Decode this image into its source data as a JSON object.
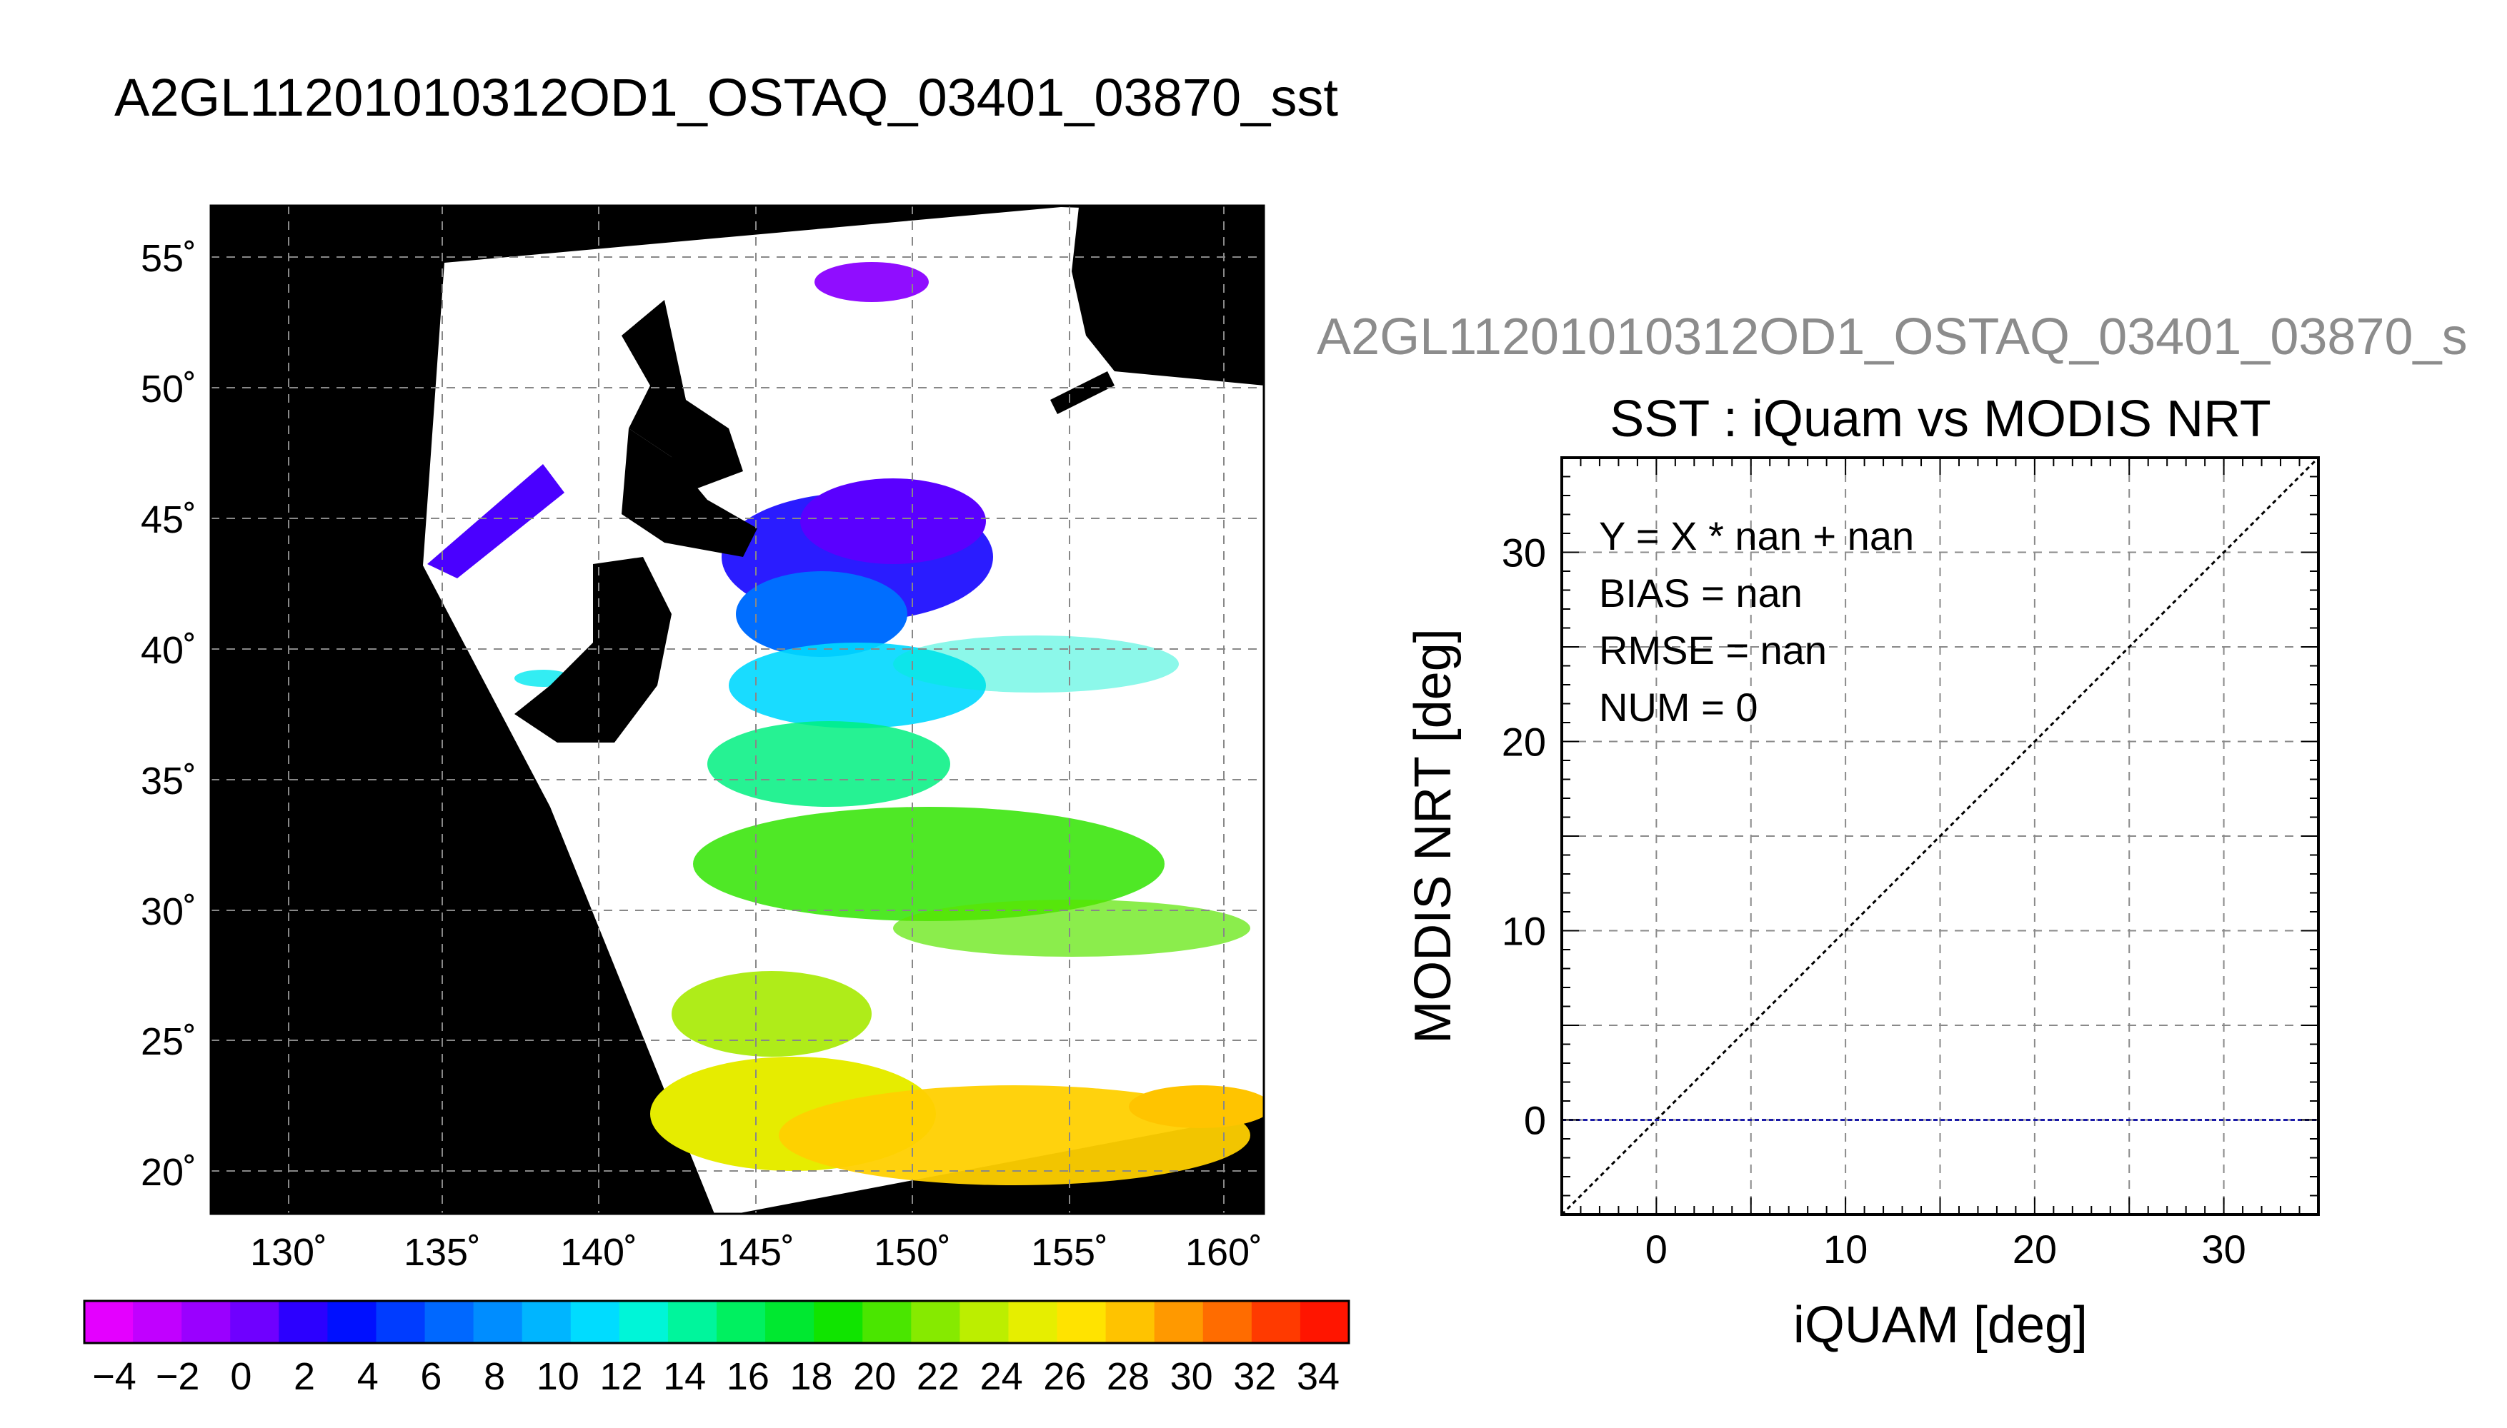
{
  "figure": {
    "title": "A2GL11201010312OD1_OSTAQ_03401_03870_sst"
  },
  "map": {
    "lat_ticks": [
      "55˚",
      "50˚",
      "45˚",
      "40˚",
      "35˚",
      "30˚",
      "25˚",
      "20˚"
    ],
    "lon_ticks": [
      "130˚",
      "135˚",
      "140˚",
      "145˚",
      "150˚",
      "155˚",
      "160˚"
    ],
    "colorbar": {
      "labels": [
        "−4",
        "−2",
        "0",
        "2",
        "4",
        "6",
        "8",
        "10",
        "12",
        "14",
        "16",
        "18",
        "20",
        "22",
        "24",
        "26",
        "28",
        "30",
        "32",
        "34"
      ],
      "colors": [
        "#e400ff",
        "#c100ff",
        "#9a00ff",
        "#6f00ff",
        "#2c00ff",
        "#0010ff",
        "#003cff",
        "#0068ff",
        "#008dff",
        "#00b5ff",
        "#00dcff",
        "#00f5d8",
        "#00f59c",
        "#00f060",
        "#00e830",
        "#10e400",
        "#4ae600",
        "#86ea00",
        "#bcee00",
        "#e6ee00",
        "#ffe300",
        "#ffc300",
        "#ff9900",
        "#ff6c00",
        "#ff3a00",
        "#ff1500"
      ]
    }
  },
  "chart_data": {
    "type": "scatter",
    "title_top": "A2GL11201010312OD1_OSTAQ_03401_03870_s",
    "title": "SST : iQuam vs MODIS NRT",
    "xlabel": "iQUAM [deg]",
    "ylabel": "MODIS NRT [deg]",
    "xlim": [
      -5,
      35
    ],
    "ylim": [
      -5,
      35
    ],
    "xticks": [
      0,
      10,
      20,
      30
    ],
    "yticks": [
      0,
      10,
      20,
      30
    ],
    "grid": true,
    "points": [],
    "reference_line": {
      "from": [
        -5,
        -5
      ],
      "to": [
        35,
        35
      ],
      "color": "#000000"
    },
    "fit_line": {
      "y": 0,
      "color": "#1a1aa8"
    },
    "stats": [
      "Y = X * nan + nan",
      "BIAS = nan",
      "RMSE = nan",
      "NUM = 0"
    ]
  }
}
